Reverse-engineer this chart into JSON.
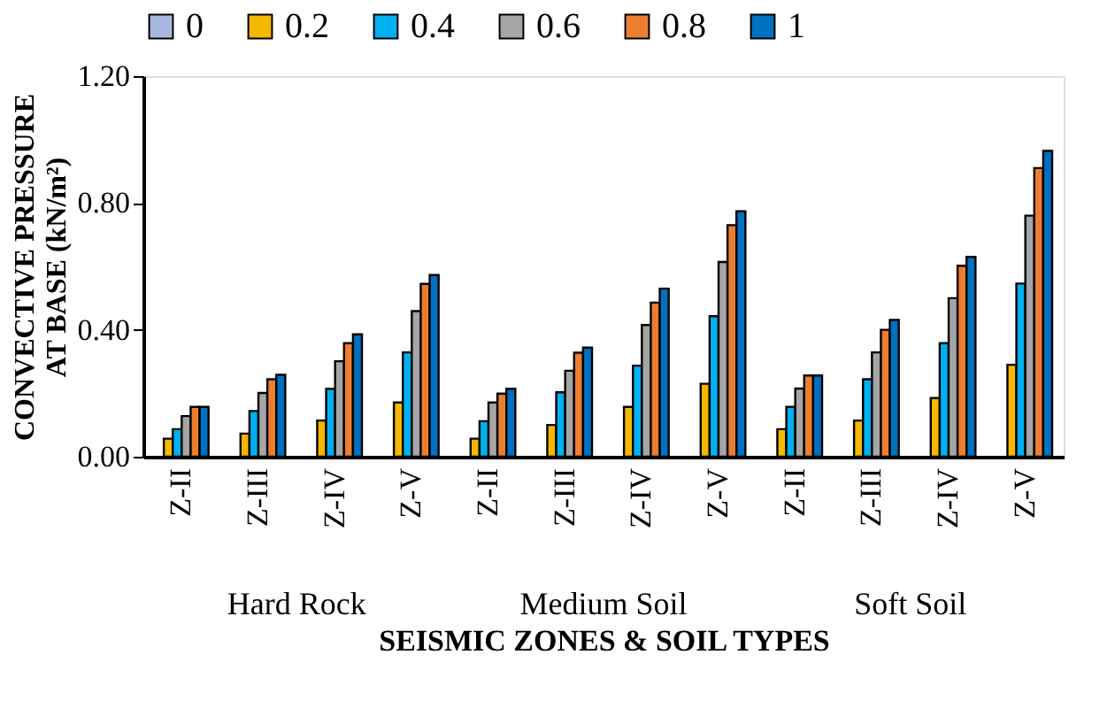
{
  "chart_data": {
    "type": "bar",
    "xlabel": "SEISMIC ZONES & SOIL TYPES",
    "ylabel": "CONVECTIVE PRESSURE AT BASE (kN/m²)",
    "categories": [
      "Z-II",
      "Z-III",
      "Z-IV",
      "Z-V",
      "Z-II",
      "Z-III",
      "Z-IV",
      "Z-V",
      "Z-II",
      "Z-III",
      "Z-IV",
      "Z-V"
    ],
    "annotations": [
      "Hard Rock",
      "Medium Soil",
      "Soft Soil"
    ],
    "series": [
      {
        "name": "0",
        "color": "#a9b8e0",
        "values": [
          null,
          null,
          null,
          null,
          null,
          null,
          null,
          null,
          null,
          null,
          null,
          null
        ]
      },
      {
        "name": "0.2",
        "color": "#f5b800",
        "values": [
          0.057,
          0.073,
          0.114,
          0.171,
          0.057,
          0.1,
          0.157,
          0.23,
          0.087,
          0.114,
          0.185,
          0.29
        ]
      },
      {
        "name": "0.4",
        "color": "#00b0f0",
        "values": [
          0.087,
          0.144,
          0.214,
          0.329,
          0.112,
          0.203,
          0.287,
          0.443,
          0.157,
          0.244,
          0.358,
          0.546
        ]
      },
      {
        "name": "0.6",
        "color": "#a5a5a5",
        "values": [
          0.128,
          0.201,
          0.301,
          0.459,
          0.171,
          0.271,
          0.415,
          0.614,
          0.215,
          0.329,
          0.5,
          0.76
        ]
      },
      {
        "name": "0.8",
        "color": "#ed7d31",
        "values": [
          0.157,
          0.244,
          0.358,
          0.545,
          0.199,
          0.328,
          0.486,
          0.73,
          0.256,
          0.4,
          0.602,
          0.91
        ]
      },
      {
        "name": "1",
        "color": "#0070c0",
        "values": [
          0.157,
          0.258,
          0.386,
          0.573,
          0.214,
          0.344,
          0.53,
          0.774,
          0.256,
          0.431,
          0.63,
          0.964
        ]
      }
    ],
    "ylim": [
      0,
      1.2
    ],
    "yticks": [
      {
        "value": 0,
        "label": "0.00"
      },
      {
        "value": 0.4,
        "label": "0.40"
      },
      {
        "value": 0.8,
        "label": "0.80"
      },
      {
        "value": 1.2,
        "label": "1.20"
      }
    ],
    "grid": false,
    "legend": "top"
  }
}
